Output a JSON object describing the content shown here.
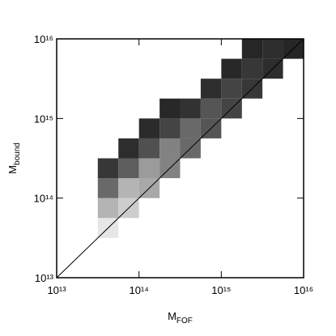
{
  "chart_data": {
    "type": "histogram2d",
    "x_label": {
      "symbol": "M",
      "subscript": "FOF"
    },
    "y_label": {
      "symbol": "M",
      "subscript": "bound"
    },
    "log_x": true,
    "log_y": true,
    "xlim": [
      10000000000000.0,
      1e+16
    ],
    "ylim": [
      10000000000000.0,
      1e+16
    ],
    "xticks": [
      {
        "value": 10000000000000.0,
        "label": "10¹³"
      },
      {
        "value": 100000000000000.0,
        "label": "10¹⁴"
      },
      {
        "value": 1000000000000000.0,
        "label": "10¹⁵"
      },
      {
        "value": 1e+16,
        "label": "10¹⁶"
      }
    ],
    "yticks": [
      {
        "value": 10000000000000.0,
        "label": "10¹³"
      },
      {
        "value": 100000000000000.0,
        "label": "10¹⁴"
      },
      {
        "value": 1000000000000000.0,
        "label": "10¹⁵"
      },
      {
        "value": 1e+16,
        "label": "10¹⁶"
      }
    ],
    "xbins": [
      31600000000000.0,
      56200000000000.0,
      100000000000000.0,
      178000000000000.0,
      316000000000000.0,
      562000000000000.0,
      1000000000000000.0,
      1780000000000000.0,
      3160000000000000.0,
      5620000000000000.0,
      1e+16
    ],
    "ybins": [
      31600000000000.0,
      56200000000000.0,
      100000000000000.0,
      178000000000000.0,
      316000000000000.0,
      562000000000000.0,
      1000000000000000.0,
      1780000000000000.0,
      3160000000000000.0,
      5620000000000000.0,
      1e+16
    ],
    "counts": [
      [
        80,
        null,
        null,
        null,
        null,
        null,
        null,
        null,
        null,
        null
      ],
      [
        60,
        70,
        null,
        null,
        null,
        null,
        null,
        null,
        null,
        null
      ],
      [
        30,
        60,
        55,
        null,
        null,
        null,
        null,
        null,
        null,
        null
      ],
      [
        10,
        25,
        50,
        40,
        null,
        null,
        null,
        null,
        null,
        null
      ],
      [
        null,
        6,
        20,
        40,
        30,
        null,
        null,
        null,
        null,
        null
      ],
      [
        null,
        null,
        5,
        15,
        30,
        22,
        null,
        null,
        null,
        null
      ],
      [
        null,
        null,
        null,
        4,
        8,
        22,
        15,
        null,
        null,
        null
      ],
      [
        null,
        null,
        null,
        null,
        null,
        6,
        15,
        10,
        null,
        null
      ],
      [
        null,
        null,
        null,
        null,
        null,
        null,
        4,
        10,
        6,
        null
      ],
      [
        null,
        null,
        null,
        null,
        null,
        null,
        null,
        3,
        6,
        3
      ]
    ],
    "identity_line": true
  }
}
